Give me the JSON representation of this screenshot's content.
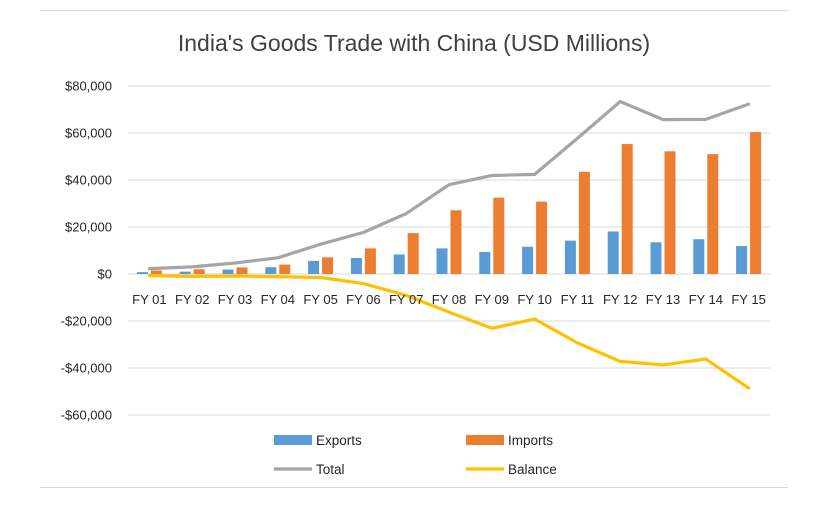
{
  "chart_data": {
    "type": "bar",
    "title": "India's Goods Trade with China (USD Millions)",
    "xlabel": "",
    "ylabel": "",
    "ylim": [
      -60000,
      80000
    ],
    "yticks": [
      80000,
      60000,
      40000,
      20000,
      0,
      -20000,
      -40000,
      -60000
    ],
    "ytick_labels": [
      "$80,000",
      "$60,000",
      "$40,000",
      "$20,000",
      "$0",
      "-$20,000",
      "-$40,000",
      "-$60,000"
    ],
    "grid": true,
    "legend_position": "bottom",
    "categories": [
      "FY 01",
      "FY 02",
      "FY 03",
      "FY 04",
      "FY 05",
      "FY 06",
      "FY 07",
      "FY 08",
      "FY 09",
      "FY 10",
      "FY 11",
      "FY 12",
      "FY 13",
      "FY 14",
      "FY 15"
    ],
    "series": [
      {
        "name": "Exports",
        "kind": "bar",
        "color": "#5b9bd5",
        "values": [
          800,
          1000,
          1900,
          2900,
          5600,
          6800,
          8300,
          10900,
          9400,
          11600,
          14200,
          18100,
          13500,
          14800,
          11900
        ]
      },
      {
        "name": "Imports",
        "kind": "bar",
        "color": "#ed7d31",
        "values": [
          1500,
          2000,
          2800,
          4000,
          7100,
          10900,
          17400,
          27100,
          32500,
          30800,
          43500,
          55300,
          52200,
          51000,
          60400
        ]
      },
      {
        "name": "Total",
        "kind": "line",
        "color": "#a5a5a5",
        "values": [
          2300,
          3000,
          4700,
          6900,
          12700,
          17700,
          25700,
          38000,
          41900,
          42400,
          57700,
          73400,
          65700,
          65800,
          72300
        ]
      },
      {
        "name": "Balance",
        "kind": "line",
        "color": "#ffc000",
        "values": [
          -700,
          -1000,
          -900,
          -1100,
          -1500,
          -4100,
          -9100,
          -16200,
          -23100,
          -19200,
          -29300,
          -37200,
          -38700,
          -36200,
          -48500
        ]
      }
    ]
  }
}
